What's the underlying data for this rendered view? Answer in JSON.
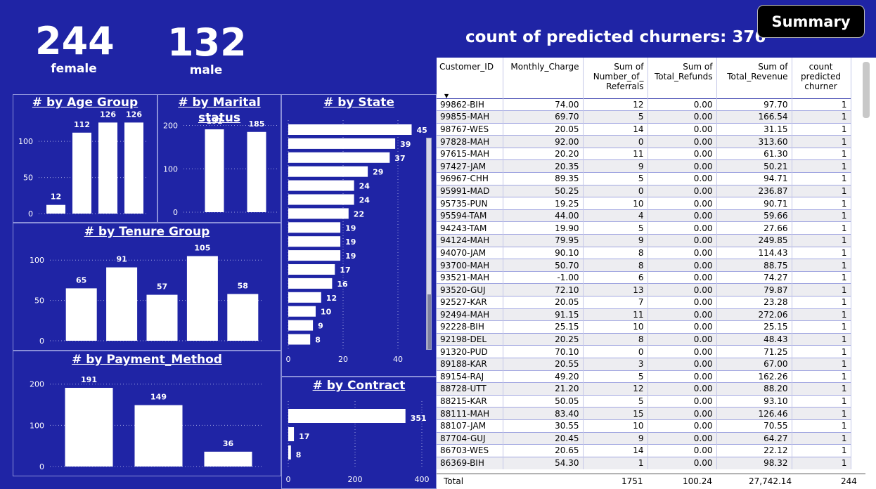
{
  "kpis": {
    "female": {
      "value": "244",
      "label": "female"
    },
    "male": {
      "value": "132",
      "label": "male"
    }
  },
  "churn_title": "count of predicted churners: 376",
  "summary_button": "Summary",
  "chart_data": [
    {
      "id": "age",
      "type": "bar",
      "title": "# by Age Group",
      "values": [
        12,
        112,
        126,
        126
      ],
      "yticks": [
        0,
        50,
        100
      ],
      "ylim": [
        0,
        140
      ],
      "grid": true
    },
    {
      "id": "marital",
      "type": "bar",
      "title": "# by Marital status",
      "values": [
        191,
        185
      ],
      "yticks": [
        0,
        100,
        200
      ],
      "ylim": [
        0,
        230
      ],
      "grid": true
    },
    {
      "id": "tenure",
      "type": "bar",
      "title": "# by Tenure Group",
      "values": [
        65,
        91,
        57,
        105,
        58
      ],
      "yticks": [
        0,
        50,
        100
      ],
      "ylim": [
        0,
        115
      ],
      "grid": true
    },
    {
      "id": "payment",
      "type": "bar",
      "title": "# by Payment_Method",
      "values": [
        191,
        149,
        36
      ],
      "yticks": [
        0,
        100,
        200
      ],
      "ylim": [
        0,
        220
      ],
      "grid": true
    },
    {
      "id": "state",
      "type": "bar",
      "orientation": "horizontal",
      "title": "# by State",
      "values": [
        45,
        39,
        37,
        29,
        24,
        24,
        22,
        19,
        19,
        19,
        17,
        16,
        12,
        10,
        9,
        8
      ],
      "xticks": [
        0,
        20,
        40
      ],
      "xlim": [
        0,
        50
      ],
      "grid": true
    },
    {
      "id": "contract",
      "type": "bar",
      "orientation": "horizontal",
      "title": "# by Contract",
      "values": [
        351,
        17,
        8
      ],
      "xticks": [
        0,
        200,
        400
      ],
      "xlim": [
        0,
        400
      ],
      "grid": true
    }
  ],
  "table": {
    "columns": [
      "Customer_ID",
      "Monthly_Charge",
      "Sum of Number_of_ Referrals",
      "Sum of Total_Refunds",
      "Sum of Total_Revenue",
      "count predicted churner"
    ],
    "rows": [
      [
        "99862-BIH",
        "74.00",
        "12",
        "0.00",
        "97.70",
        "1"
      ],
      [
        "99855-MAH",
        "69.70",
        "5",
        "0.00",
        "166.54",
        "1"
      ],
      [
        "98767-WES",
        "20.05",
        "14",
        "0.00",
        "31.15",
        "1"
      ],
      [
        "97828-MAH",
        "92.00",
        "0",
        "0.00",
        "313.60",
        "1"
      ],
      [
        "97615-MAH",
        "20.20",
        "11",
        "0.00",
        "61.30",
        "1"
      ],
      [
        "97427-JAM",
        "20.35",
        "9",
        "0.00",
        "50.21",
        "1"
      ],
      [
        "96967-CHH",
        "89.35",
        "5",
        "0.00",
        "94.71",
        "1"
      ],
      [
        "95991-MAD",
        "50.25",
        "0",
        "0.00",
        "236.87",
        "1"
      ],
      [
        "95735-PUN",
        "19.25",
        "10",
        "0.00",
        "90.71",
        "1"
      ],
      [
        "95594-TAM",
        "44.00",
        "4",
        "0.00",
        "59.66",
        "1"
      ],
      [
        "94243-TAM",
        "19.90",
        "5",
        "0.00",
        "27.66",
        "1"
      ],
      [
        "94124-MAH",
        "79.95",
        "9",
        "0.00",
        "249.85",
        "1"
      ],
      [
        "94070-JAM",
        "90.10",
        "8",
        "0.00",
        "114.43",
        "1"
      ],
      [
        "93700-MAH",
        "50.70",
        "8",
        "0.00",
        "88.75",
        "1"
      ],
      [
        "93521-MAH",
        "-1.00",
        "6",
        "0.00",
        "74.27",
        "1"
      ],
      [
        "93520-GUJ",
        "72.10",
        "13",
        "0.00",
        "79.87",
        "1"
      ],
      [
        "92527-KAR",
        "20.05",
        "7",
        "0.00",
        "23.28",
        "1"
      ],
      [
        "92494-MAH",
        "91.15",
        "11",
        "0.00",
        "272.06",
        "1"
      ],
      [
        "92228-BIH",
        "25.15",
        "10",
        "0.00",
        "25.15",
        "1"
      ],
      [
        "92198-DEL",
        "20.25",
        "8",
        "0.00",
        "48.43",
        "1"
      ],
      [
        "91320-PUD",
        "70.10",
        "0",
        "0.00",
        "71.25",
        "1"
      ],
      [
        "89188-KAR",
        "20.55",
        "3",
        "0.00",
        "67.00",
        "1"
      ],
      [
        "89154-RAJ",
        "49.20",
        "5",
        "0.00",
        "162.26",
        "1"
      ],
      [
        "88728-UTT",
        "21.20",
        "12",
        "0.00",
        "88.20",
        "1"
      ],
      [
        "88215-KAR",
        "50.05",
        "5",
        "0.00",
        "93.10",
        "1"
      ],
      [
        "88111-MAH",
        "83.40",
        "15",
        "0.00",
        "126.46",
        "1"
      ],
      [
        "88107-JAM",
        "30.55",
        "10",
        "0.00",
        "70.55",
        "1"
      ],
      [
        "87704-GUJ",
        "20.45",
        "9",
        "0.00",
        "64.27",
        "1"
      ],
      [
        "86703-WES",
        "20.65",
        "14",
        "0.00",
        "22.12",
        "1"
      ],
      [
        "86369-BIH",
        "54.30",
        "1",
        "0.00",
        "98.32",
        "1"
      ]
    ],
    "total": {
      "label": "Total",
      "referrals": "1751",
      "refunds": "100.24",
      "revenue": "27,742.14",
      "count": "244"
    }
  }
}
